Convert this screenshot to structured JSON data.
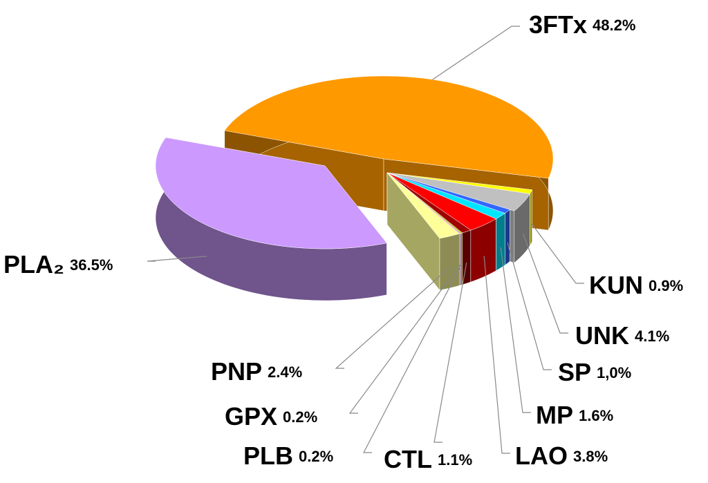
{
  "chart_data": {
    "type": "pie3d",
    "categories": [
      "3FTx",
      "KUN",
      "UNK",
      "SP",
      "MP",
      "LAO",
      "CTL",
      "PLB",
      "GPX",
      "PNP",
      "PLA₂"
    ],
    "values": [
      48.2,
      0.9,
      4.1,
      1.0,
      1.6,
      3.8,
      1.1,
      0.2,
      0.2,
      2.4,
      36.5
    ],
    "value_labels": [
      "48.2%",
      "0.9%",
      "4.1%",
      "1,0%",
      "1.6%",
      "3.8%",
      "1.1%",
      "0.2%",
      "0.2%",
      "2.4%",
      "36.5%"
    ],
    "colors": [
      "#ff9900",
      "#ffff00",
      "#c0c0c0",
      "#3366ff",
      "#00e5ff",
      "#ff0000",
      "#a00000",
      "#99cc00",
      "#ff99cc",
      "#ffff99",
      "#cc99ff"
    ]
  }
}
